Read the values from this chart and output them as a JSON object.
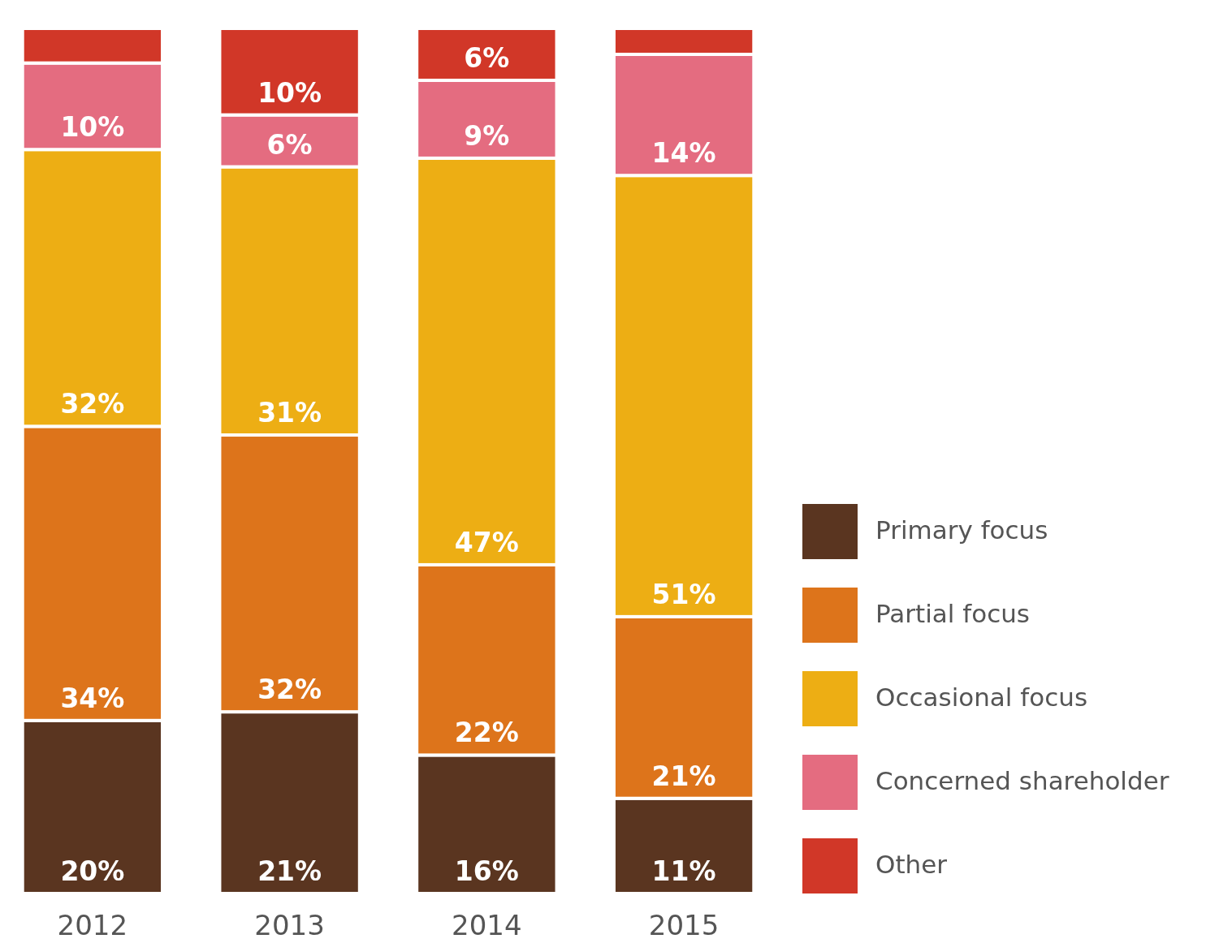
{
  "chart_data": {
    "type": "bar",
    "stacked": true,
    "categories": [
      "2012",
      "2013",
      "2014",
      "2015"
    ],
    "ylim": [
      0,
      100
    ],
    "tick_labels": "x",
    "legend": "bottom right",
    "series": [
      {
        "name": "Primary focus",
        "color": "#5a3520",
        "values": [
          20,
          21,
          16,
          11
        ],
        "value_labels": [
          "20%",
          "21%",
          "16%",
          "11%"
        ]
      },
      {
        "name": "Partial focus",
        "color": "#dd741b",
        "values": [
          34,
          32,
          22,
          21
        ],
        "value_labels": [
          "34%",
          "32%",
          "22%",
          "21%"
        ]
      },
      {
        "name": "Occasional focus",
        "color": "#edae14",
        "values": [
          32,
          31,
          47,
          51
        ],
        "value_labels": [
          "32%",
          "31%",
          "47%",
          "51%"
        ]
      },
      {
        "name": "Concerned shareholder",
        "color": "#e46c80",
        "values": [
          10,
          6,
          9,
          14
        ],
        "value_labels": [
          "10%",
          "6%",
          "9%",
          "14%"
        ]
      },
      {
        "name": "Other",
        "color": "#d13728",
        "values": [
          4,
          10,
          6,
          3
        ],
        "value_labels": [
          null,
          "10%",
          "6%",
          null
        ]
      }
    ]
  }
}
